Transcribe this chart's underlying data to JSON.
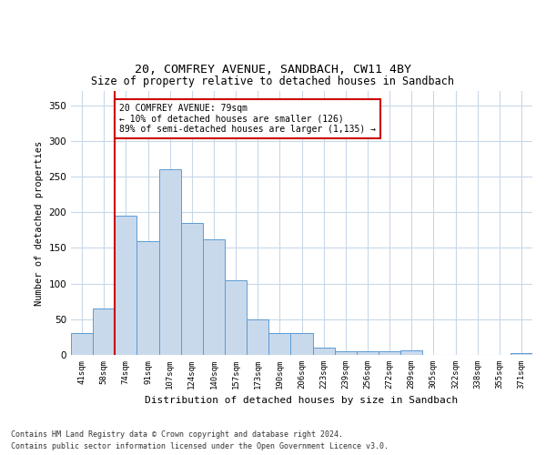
{
  "title1": "20, COMFREY AVENUE, SANDBACH, CW11 4BY",
  "title2": "Size of property relative to detached houses in Sandbach",
  "xlabel": "Distribution of detached houses by size in Sandbach",
  "ylabel": "Number of detached properties",
  "categories": [
    "41sqm",
    "58sqm",
    "74sqm",
    "91sqm",
    "107sqm",
    "124sqm",
    "140sqm",
    "157sqm",
    "173sqm",
    "190sqm",
    "206sqm",
    "223sqm",
    "239sqm",
    "256sqm",
    "272sqm",
    "289sqm",
    "305sqm",
    "322sqm",
    "338sqm",
    "355sqm",
    "371sqm"
  ],
  "values": [
    30,
    65,
    195,
    160,
    260,
    185,
    162,
    104,
    50,
    30,
    30,
    10,
    5,
    5,
    5,
    6,
    0,
    0,
    0,
    0,
    2
  ],
  "bar_color": "#c9d9ec",
  "bar_edge_color": "#5b9bd5",
  "vline_x_index": 2,
  "vline_color": "#cc0000",
  "annotation_text": "20 COMFREY AVENUE: 79sqm\n← 10% of detached houses are smaller (126)\n89% of semi-detached houses are larger (1,135) →",
  "annotation_box_color": "#ffffff",
  "annotation_box_edge": "#cc0000",
  "ylim": [
    0,
    370
  ],
  "yticks": [
    0,
    50,
    100,
    150,
    200,
    250,
    300,
    350
  ],
  "background_color": "#ffffff",
  "grid_color": "#c8d8e8",
  "footer1": "Contains HM Land Registry data © Crown copyright and database right 2024.",
  "footer2": "Contains public sector information licensed under the Open Government Licence v3.0."
}
